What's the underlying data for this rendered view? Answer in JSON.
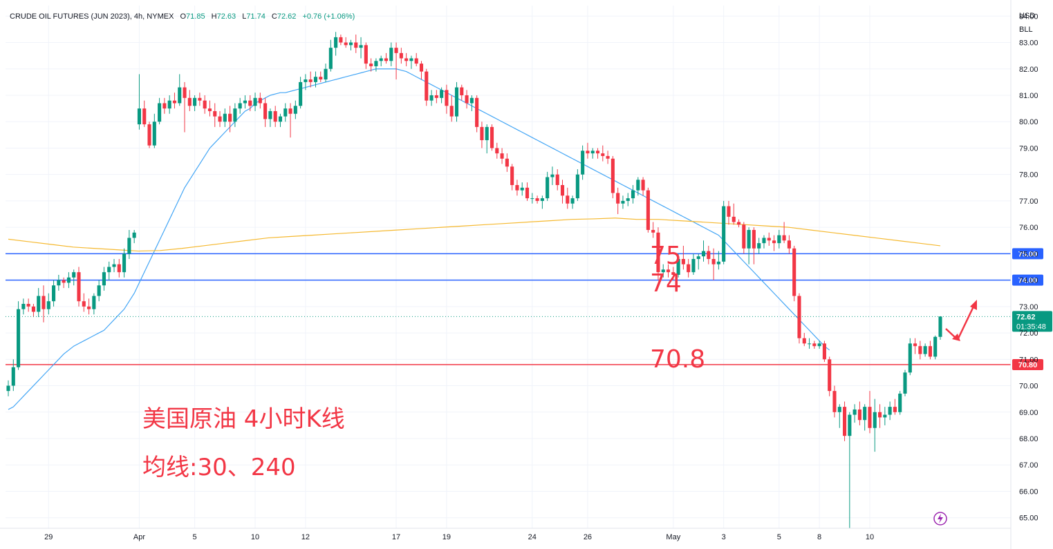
{
  "header": {
    "symbol": "CRUDE OIL FUTURES (JUN 2023)",
    "interval": "4h",
    "exchange": "NYMEX",
    "open_label": "O",
    "open": "71.85",
    "high_label": "H",
    "high": "72.63",
    "low_label": "L",
    "low": "71.74",
    "close_label": "C",
    "close": "72.62",
    "change": "+0.76 (+1.06%)"
  },
  "currency": "USD",
  "unit": "BLL",
  "price_badge": {
    "price": "72.62",
    "countdown": "01:35:48"
  },
  "annotations": {
    "label_75": "75",
    "label_74": "74",
    "label_708": "70.8",
    "title_cn": "美国原油 4小时K线",
    "ma_cn": "均线:30、240"
  },
  "colors": {
    "up": "#089981",
    "down": "#f23645",
    "ma30": "#42a5f5",
    "ma240": "#f5b82e",
    "level_blue": "#2962ff",
    "level_red": "#f23645"
  },
  "icons": {
    "replay": "lightning-icon"
  },
  "chart_data": {
    "type": "candlestick",
    "y_ticks": [
      "84.00",
      "83.00",
      "82.00",
      "81.00",
      "80.00",
      "79.00",
      "78.00",
      "77.00",
      "76.00",
      "75.00",
      "74.00",
      "73.00",
      "72.00",
      "71.00",
      "70.00",
      "69.00",
      "68.00",
      "67.00",
      "66.00",
      "65.00"
    ],
    "ylim": [
      64.6,
      84.4
    ],
    "x_ticks": [
      {
        "label": "29",
        "i": 8
      },
      {
        "label": "Apr",
        "i": 26
      },
      {
        "label": "5",
        "i": 37
      },
      {
        "label": "10",
        "i": 49
      },
      {
        "label": "12",
        "i": 59
      },
      {
        "label": "17",
        "i": 77
      },
      {
        "label": "19",
        "i": 87
      },
      {
        "label": "24",
        "i": 104
      },
      {
        "label": "26",
        "i": 115
      },
      {
        "label": "May",
        "i": 132
      },
      {
        "label": "3",
        "i": 142
      },
      {
        "label": "5",
        "i": 153
      },
      {
        "label": "8",
        "i": 161
      },
      {
        "label": "10",
        "i": 171
      }
    ],
    "horizontal_levels": [
      {
        "value": 75.0,
        "label": "75.00",
        "color": "#2962ff"
      },
      {
        "value": 74.0,
        "label": "74.00",
        "color": "#2962ff"
      },
      {
        "value": 70.8,
        "label": "70.80",
        "color": "#f23645"
      }
    ],
    "last_price": 72.62,
    "candles": [
      [
        69.8,
        70.2,
        69.6,
        70.0
      ],
      [
        70.0,
        71.0,
        69.8,
        70.7
      ],
      [
        70.7,
        73.2,
        70.6,
        72.9
      ],
      [
        72.9,
        73.3,
        72.7,
        73.1
      ],
      [
        73.1,
        73.3,
        72.8,
        73.0
      ],
      [
        73.0,
        73.1,
        72.6,
        72.8
      ],
      [
        72.8,
        73.7,
        72.6,
        73.4
      ],
      [
        73.4,
        73.8,
        72.4,
        72.9
      ],
      [
        72.9,
        73.5,
        72.7,
        73.2
      ],
      [
        73.2,
        74.0,
        73.0,
        73.8
      ],
      [
        73.8,
        74.2,
        73.6,
        74.0
      ],
      [
        74.0,
        74.1,
        73.7,
        73.9
      ],
      [
        73.9,
        74.3,
        73.7,
        74.1
      ],
      [
        74.1,
        74.4,
        73.8,
        74.3
      ],
      [
        74.3,
        74.5,
        73.0,
        73.2
      ],
      [
        73.2,
        73.5,
        72.8,
        73.0
      ],
      [
        73.0,
        73.3,
        72.7,
        72.9
      ],
      [
        72.9,
        73.5,
        72.7,
        73.4
      ],
      [
        73.4,
        74.0,
        73.2,
        73.8
      ],
      [
        73.8,
        74.5,
        73.6,
        74.3
      ],
      [
        74.3,
        74.7,
        74.0,
        74.5
      ],
      [
        74.5,
        74.8,
        74.3,
        74.6
      ],
      [
        74.6,
        74.8,
        74.1,
        74.3
      ],
      [
        74.3,
        75.2,
        74.1,
        75.0
      ],
      [
        75.0,
        75.9,
        74.8,
        75.6
      ],
      [
        75.6,
        75.9,
        75.4,
        75.8
      ],
      [
        79.9,
        81.8,
        79.7,
        80.5
      ],
      [
        80.5,
        80.8,
        79.8,
        79.9
      ],
      [
        79.9,
        80.0,
        79.0,
        79.1
      ],
      [
        79.1,
        80.3,
        79.0,
        80.0
      ],
      [
        80.0,
        80.9,
        79.9,
        80.7
      ],
      [
        80.7,
        80.9,
        80.3,
        80.5
      ],
      [
        80.5,
        81.0,
        80.3,
        80.8
      ],
      [
        80.8,
        81.1,
        80.5,
        80.7
      ],
      [
        80.7,
        81.8,
        80.6,
        81.3
      ],
      [
        81.3,
        81.5,
        79.6,
        80.9
      ],
      [
        80.9,
        81.2,
        80.4,
        80.6
      ],
      [
        80.6,
        81.0,
        80.4,
        80.9
      ],
      [
        80.9,
        81.1,
        80.6,
        80.8
      ],
      [
        80.8,
        81.0,
        80.3,
        80.5
      ],
      [
        80.5,
        80.8,
        80.2,
        80.4
      ],
      [
        80.4,
        80.7,
        79.8,
        80.2
      ],
      [
        80.2,
        80.4,
        79.8,
        80.0
      ],
      [
        80.0,
        80.5,
        79.8,
        80.3
      ],
      [
        80.3,
        80.6,
        79.6,
        80.0
      ],
      [
        80.0,
        80.7,
        79.8,
        80.5
      ],
      [
        80.5,
        80.9,
        80.3,
        80.7
      ],
      [
        80.7,
        81.0,
        80.5,
        80.8
      ],
      [
        80.8,
        81.0,
        80.4,
        80.6
      ],
      [
        80.6,
        81.1,
        80.4,
        80.9
      ],
      [
        80.9,
        81.1,
        80.5,
        80.7
      ],
      [
        80.7,
        80.9,
        79.8,
        80.1
      ],
      [
        80.1,
        80.5,
        79.8,
        80.4
      ],
      [
        80.4,
        80.6,
        79.8,
        80.0
      ],
      [
        80.0,
        80.3,
        79.8,
        80.2
      ],
      [
        80.2,
        80.7,
        80.0,
        80.5
      ],
      [
        80.5,
        80.7,
        79.4,
        80.3
      ],
      [
        80.3,
        80.8,
        80.1,
        80.6
      ],
      [
        80.6,
        81.7,
        80.5,
        81.5
      ],
      [
        81.5,
        81.8,
        81.2,
        81.6
      ],
      [
        81.6,
        81.9,
        81.3,
        81.5
      ],
      [
        81.5,
        81.9,
        81.3,
        81.7
      ],
      [
        81.7,
        81.9,
        81.5,
        81.6
      ],
      [
        81.6,
        82.2,
        81.5,
        82.0
      ],
      [
        82.0,
        83.1,
        81.9,
        82.8
      ],
      [
        82.8,
        83.4,
        82.5,
        83.2
      ],
      [
        83.2,
        83.3,
        82.9,
        83.0
      ],
      [
        83.0,
        83.2,
        82.8,
        82.9
      ],
      [
        82.9,
        83.1,
        82.7,
        83.0
      ],
      [
        83.0,
        83.3,
        82.6,
        82.8
      ],
      [
        82.8,
        83.2,
        82.4,
        82.9
      ],
      [
        82.9,
        83.0,
        82.0,
        82.2
      ],
      [
        82.2,
        82.4,
        81.9,
        82.1
      ],
      [
        82.1,
        82.4,
        81.9,
        82.3
      ],
      [
        82.3,
        82.5,
        82.1,
        82.4
      ],
      [
        82.4,
        82.6,
        82.2,
        82.3
      ],
      [
        82.3,
        83.0,
        82.1,
        82.8
      ],
      [
        82.8,
        83.0,
        81.6,
        82.6
      ],
      [
        82.6,
        82.8,
        82.2,
        82.4
      ],
      [
        82.4,
        82.6,
        82.1,
        82.3
      ],
      [
        82.3,
        82.5,
        82.0,
        82.4
      ],
      [
        82.4,
        82.6,
        82.1,
        82.2
      ],
      [
        82.2,
        82.3,
        81.6,
        81.9
      ],
      [
        81.9,
        82.0,
        80.6,
        80.8
      ],
      [
        80.8,
        81.2,
        80.6,
        81.0
      ],
      [
        81.0,
        81.2,
        80.7,
        80.9
      ],
      [
        80.9,
        81.3,
        80.7,
        81.2
      ],
      [
        81.2,
        81.4,
        80.3,
        80.6
      ],
      [
        80.6,
        81.0,
        80.0,
        80.2
      ],
      [
        80.2,
        81.5,
        80.0,
        81.3
      ],
      [
        81.3,
        81.4,
        80.8,
        81.0
      ],
      [
        81.0,
        81.2,
        80.5,
        80.7
      ],
      [
        80.7,
        81.0,
        80.4,
        80.9
      ],
      [
        80.9,
        81.0,
        79.6,
        79.8
      ],
      [
        79.8,
        80.0,
        79.0,
        79.3
      ],
      [
        79.3,
        79.9,
        78.8,
        79.8
      ],
      [
        79.8,
        79.9,
        78.9,
        79.0
      ],
      [
        79.0,
        79.2,
        78.6,
        78.8
      ],
      [
        78.8,
        79.0,
        78.4,
        78.6
      ],
      [
        78.6,
        78.8,
        78.1,
        78.3
      ],
      [
        78.3,
        78.4,
        77.4,
        77.6
      ],
      [
        77.6,
        77.8,
        77.2,
        77.4
      ],
      [
        77.4,
        77.7,
        77.2,
        77.5
      ],
      [
        77.5,
        77.7,
        77.0,
        77.1
      ],
      [
        77.1,
        77.3,
        76.9,
        77.1
      ],
      [
        77.1,
        77.2,
        76.9,
        77.0
      ],
      [
        77.0,
        77.2,
        76.7,
        77.1
      ],
      [
        77.1,
        78.1,
        77.0,
        77.9
      ],
      [
        77.9,
        78.3,
        77.6,
        78.0
      ],
      [
        78.0,
        78.2,
        77.4,
        77.6
      ],
      [
        77.6,
        77.8,
        76.9,
        77.2
      ],
      [
        77.2,
        77.5,
        76.7,
        76.9
      ],
      [
        76.9,
        77.2,
        76.7,
        77.1
      ],
      [
        77.1,
        78.2,
        77.0,
        78.0
      ],
      [
        78.0,
        79.1,
        77.8,
        78.9
      ],
      [
        78.9,
        79.2,
        78.6,
        78.8
      ],
      [
        78.8,
        79.0,
        78.6,
        78.9
      ],
      [
        78.9,
        79.0,
        78.6,
        78.8
      ],
      [
        78.8,
        79.1,
        78.5,
        78.7
      ],
      [
        78.7,
        78.9,
        78.4,
        78.6
      ],
      [
        78.6,
        78.7,
        77.1,
        77.3
      ],
      [
        77.3,
        77.5,
        76.5,
        76.9
      ],
      [
        76.9,
        77.2,
        76.7,
        77.0
      ],
      [
        77.0,
        77.3,
        76.8,
        77.1
      ],
      [
        77.1,
        77.6,
        76.9,
        77.4
      ],
      [
        77.4,
        77.9,
        77.2,
        77.8
      ],
      [
        77.8,
        77.9,
        77.2,
        77.4
      ],
      [
        77.4,
        77.5,
        75.8,
        75.9
      ],
      [
        75.9,
        76.2,
        75.6,
        75.8
      ],
      [
        75.8,
        76.0,
        74.0,
        74.3
      ],
      [
        74.3,
        74.6,
        74.1,
        74.4
      ],
      [
        74.4,
        74.6,
        74.1,
        74.3
      ],
      [
        74.3,
        74.5,
        74.0,
        74.2
      ],
      [
        74.2,
        75.0,
        74.1,
        74.8
      ],
      [
        74.8,
        75.3,
        74.4,
        74.6
      ],
      [
        74.6,
        74.8,
        74.1,
        74.3
      ],
      [
        74.3,
        75.0,
        74.2,
        74.8
      ],
      [
        74.8,
        75.0,
        74.4,
        74.9
      ],
      [
        74.9,
        75.5,
        74.7,
        75.1
      ],
      [
        75.1,
        75.3,
        74.6,
        74.8
      ],
      [
        74.8,
        75.2,
        74.0,
        74.6
      ],
      [
        74.6,
        75.1,
        74.4,
        74.7
      ],
      [
        74.7,
        77.0,
        74.6,
        76.8
      ],
      [
        76.8,
        77.0,
        76.1,
        76.4
      ],
      [
        76.4,
        76.9,
        76.1,
        76.2
      ],
      [
        76.2,
        76.3,
        76.0,
        76.1
      ],
      [
        76.1,
        76.2,
        75.0,
        75.2
      ],
      [
        75.2,
        76.0,
        74.6,
        75.9
      ],
      [
        75.9,
        76.0,
        74.6,
        75.2
      ],
      [
        75.2,
        75.6,
        75.0,
        75.4
      ],
      [
        75.4,
        75.7,
        75.2,
        75.6
      ],
      [
        75.6,
        75.8,
        75.3,
        75.5
      ],
      [
        75.5,
        75.7,
        75.1,
        75.4
      ],
      [
        75.4,
        75.9,
        75.2,
        75.7
      ],
      [
        75.7,
        76.2,
        75.4,
        75.5
      ],
      [
        75.5,
        75.7,
        75.0,
        75.2
      ],
      [
        75.2,
        75.3,
        73.2,
        73.4
      ],
      [
        73.4,
        73.5,
        71.6,
        71.8
      ],
      [
        71.8,
        72.0,
        71.5,
        71.6
      ],
      [
        71.6,
        71.8,
        71.4,
        71.6
      ],
      [
        71.6,
        71.7,
        71.4,
        71.5
      ],
      [
        71.5,
        71.7,
        71.4,
        71.6
      ],
      [
        71.6,
        71.7,
        70.9,
        71.0
      ],
      [
        71.0,
        71.1,
        69.6,
        69.8
      ],
      [
        69.8,
        70.0,
        68.8,
        69.0
      ],
      [
        69.0,
        69.3,
        68.4,
        69.2
      ],
      [
        69.2,
        69.4,
        67.9,
        68.1
      ],
      [
        68.1,
        69.0,
        64.6,
        68.9
      ],
      [
        68.9,
        69.3,
        68.6,
        69.1
      ],
      [
        69.1,
        69.4,
        68.5,
        68.7
      ],
      [
        68.7,
        69.3,
        68.3,
        69.2
      ],
      [
        69.2,
        69.8,
        68.2,
        68.4
      ],
      [
        68.4,
        69.5,
        67.5,
        69.0
      ],
      [
        69.0,
        69.3,
        68.4,
        68.8
      ],
      [
        68.8,
        69.2,
        68.5,
        68.9
      ],
      [
        68.9,
        69.4,
        68.7,
        69.2
      ],
      [
        69.2,
        69.5,
        68.9,
        69.0
      ],
      [
        69.0,
        69.8,
        68.9,
        69.7
      ],
      [
        69.7,
        70.6,
        69.6,
        70.5
      ],
      [
        70.5,
        71.8,
        70.4,
        71.6
      ],
      [
        71.6,
        71.8,
        71.2,
        71.5
      ],
      [
        71.5,
        71.7,
        71.0,
        71.2
      ],
      [
        71.2,
        71.6,
        71.1,
        71.5
      ],
      [
        71.5,
        71.7,
        71.0,
        71.1
      ],
      [
        71.1,
        71.9,
        71.0,
        71.85
      ],
      [
        71.85,
        72.63,
        71.74,
        72.62
      ]
    ],
    "ma30": [
      69.1,
      69.2,
      69.4,
      69.6,
      69.8,
      70.0,
      70.2,
      70.4,
      70.6,
      70.8,
      71.0,
      71.2,
      71.35,
      71.5,
      71.6,
      71.7,
      71.8,
      71.9,
      72.0,
      72.1,
      72.3,
      72.5,
      72.7,
      72.9,
      73.2,
      73.5,
      73.9,
      74.3,
      74.7,
      75.1,
      75.5,
      75.9,
      76.3,
      76.7,
      77.1,
      77.5,
      77.8,
      78.1,
      78.4,
      78.7,
      79.0,
      79.2,
      79.4,
      79.6,
      79.8,
      80.0,
      80.2,
      80.4,
      80.5,
      80.7,
      80.8,
      80.9,
      81.0,
      81.05,
      81.1,
      81.1,
      81.15,
      81.2,
      81.25,
      81.3,
      81.35,
      81.4,
      81.45,
      81.5,
      81.55,
      81.6,
      81.65,
      81.7,
      81.75,
      81.8,
      81.85,
      81.9,
      81.95,
      82.0,
      82.0,
      82.0,
      82.0,
      82.0,
      81.95,
      81.9,
      81.8,
      81.7,
      81.6,
      81.5,
      81.4,
      81.3,
      81.2,
      81.1,
      81.0,
      80.9,
      80.8,
      80.7,
      80.6,
      80.5,
      80.4,
      80.3,
      80.2,
      80.1,
      80.0,
      79.9,
      79.8,
      79.7,
      79.6,
      79.5,
      79.4,
      79.3,
      79.2,
      79.1,
      79.0,
      78.9,
      78.8,
      78.7,
      78.6,
      78.5,
      78.4,
      78.3,
      78.2,
      78.1,
      78.0,
      77.9,
      77.8,
      77.7,
      77.6,
      77.5,
      77.4,
      77.3,
      77.2,
      77.1,
      77.0,
      76.9,
      76.8,
      76.7,
      76.6,
      76.5,
      76.4,
      76.3,
      76.2,
      76.1,
      76.0,
      75.9,
      75.8,
      75.7,
      75.5,
      75.3,
      75.1,
      74.9,
      74.7,
      74.5,
      74.3,
      74.1,
      73.9,
      73.7,
      73.5,
      73.3,
      73.1,
      72.9,
      72.7,
      72.5,
      72.3,
      72.1,
      71.9,
      71.7,
      71.5,
      71.35
    ],
    "ma240": [
      75.55,
      75.45,
      75.35,
      75.25,
      75.2,
      75.15,
      75.1,
      75.12,
      75.2,
      75.3,
      75.4,
      75.5,
      75.6,
      75.65,
      75.7,
      75.75,
      75.8,
      75.85,
      75.9,
      75.95,
      76.0,
      76.05,
      76.1,
      76.15,
      76.2,
      76.25,
      76.3,
      76.32,
      76.35,
      76.3,
      76.3,
      76.25,
      76.2,
      76.15,
      76.1,
      76.05,
      76.0,
      75.9,
      75.8,
      75.7,
      75.6,
      75.5,
      75.4,
      75.3
    ]
  }
}
